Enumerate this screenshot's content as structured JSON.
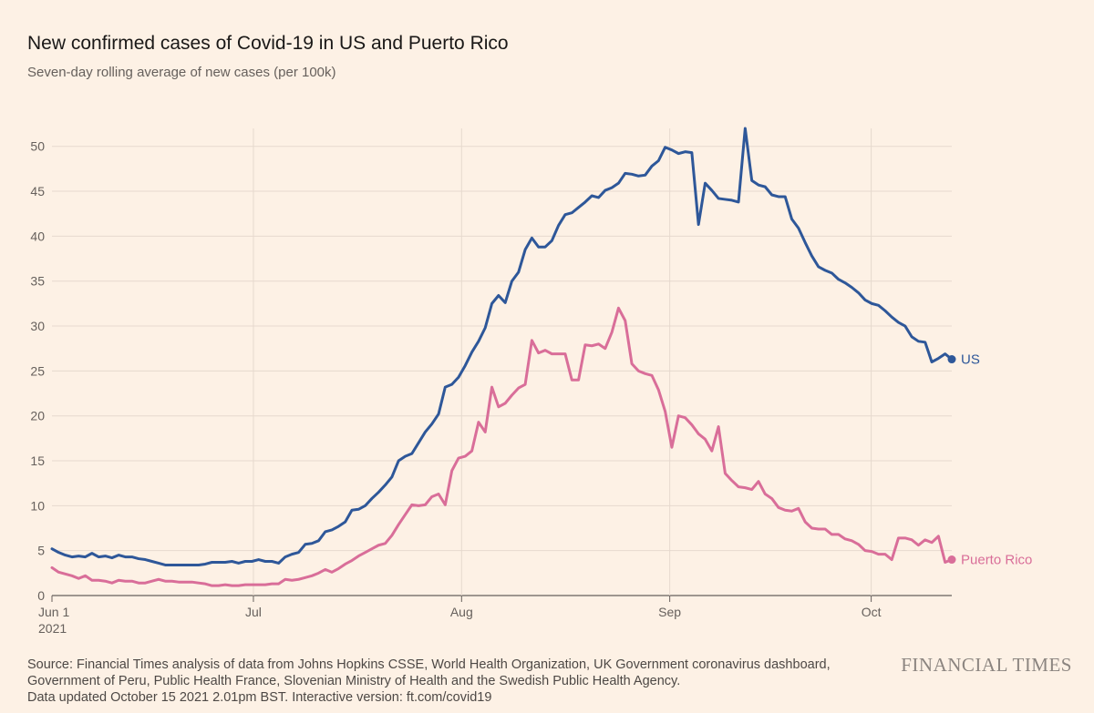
{
  "title": "New confirmed cases of Covid-19 in US and Puerto Rico",
  "subtitle": "Seven-day rolling average of new cases (per 100k)",
  "source_lines": [
    "Source: Financial Times analysis of data from Johns Hopkins CSSE, World Health Organization, UK Government coronavirus dashboard,",
    "Government of Peru, Public Health France, Slovenian Ministry of Health and the Swedish Public Health Agency.",
    "Data updated October 15 2021 2.01pm BST. Interactive version: ft.com/covid19"
  ],
  "brand": "FINANCIAL TIMES",
  "chart_data": {
    "type": "line",
    "x_start": "2021-06-01",
    "x_end": "2021-10-13",
    "ylim": [
      0,
      52
    ],
    "yticks": [
      0,
      5,
      10,
      15,
      20,
      25,
      30,
      35,
      40,
      45,
      50
    ],
    "xticks": [
      {
        "date": "2021-06-01",
        "label": "Jun 1",
        "label2": "2021"
      },
      {
        "date": "2021-07-01",
        "label": "Jul"
      },
      {
        "date": "2021-08-01",
        "label": "Aug"
      },
      {
        "date": "2021-09-01",
        "label": "Sep"
      },
      {
        "date": "2021-10-01",
        "label": "Oct"
      }
    ],
    "grid": true,
    "series": [
      {
        "name": "US",
        "color": "#2e5799",
        "values": [
          5.2,
          4.8,
          4.5,
          4.3,
          4.4,
          4.3,
          4.7,
          4.3,
          4.4,
          4.2,
          4.5,
          4.3,
          4.3,
          4.1,
          4.0,
          3.8,
          3.6,
          3.4,
          3.4,
          3.4,
          3.4,
          3.4,
          3.4,
          3.5,
          3.7,
          3.7,
          3.7,
          3.8,
          3.6,
          3.8,
          3.8,
          4.0,
          3.8,
          3.8,
          3.6,
          4.3,
          4.6,
          4.8,
          5.7,
          5.8,
          6.1,
          7.1,
          7.3,
          7.7,
          8.2,
          9.5,
          9.6,
          10.0,
          10.8,
          11.5,
          12.3,
          13.2,
          15.0,
          15.5,
          15.8,
          17.0,
          18.2,
          19.1,
          20.2,
          23.2,
          23.5,
          24.3,
          25.6,
          27.1,
          28.3,
          29.8,
          32.5,
          33.4,
          32.6,
          35.0,
          36.0,
          38.5,
          39.8,
          38.8,
          38.8,
          39.5,
          41.2,
          42.4,
          42.6,
          43.2,
          43.8,
          44.5,
          44.3,
          45.1,
          45.4,
          45.9,
          47.0,
          46.9,
          46.7,
          46.8,
          47.8,
          48.4,
          49.9,
          49.6,
          49.2,
          49.4,
          49.3,
          41.3,
          45.9,
          45.1,
          44.2,
          44.1,
          44.0,
          43.8,
          52.0,
          46.2,
          45.7,
          45.5,
          44.6,
          44.4,
          44.4,
          41.9,
          40.9,
          39.3,
          37.8,
          36.6,
          36.2,
          35.9,
          35.2,
          34.8,
          34.3,
          33.7,
          32.9,
          32.5,
          32.3,
          31.7,
          31.0,
          30.4,
          30.0,
          28.8,
          28.3,
          28.2,
          26.0,
          26.4,
          26.9,
          26.3
        ]
      },
      {
        "name": "Puerto Rico",
        "color": "#d96e99",
        "values": [
          3.1,
          2.6,
          2.4,
          2.2,
          1.9,
          2.2,
          1.7,
          1.7,
          1.6,
          1.4,
          1.7,
          1.6,
          1.6,
          1.4,
          1.4,
          1.6,
          1.8,
          1.6,
          1.6,
          1.5,
          1.5,
          1.5,
          1.4,
          1.3,
          1.1,
          1.1,
          1.2,
          1.1,
          1.1,
          1.2,
          1.2,
          1.2,
          1.2,
          1.3,
          1.3,
          1.8,
          1.7,
          1.8,
          2.0,
          2.2,
          2.5,
          2.9,
          2.6,
          3.0,
          3.5,
          3.9,
          4.4,
          4.8,
          5.2,
          5.6,
          5.8,
          6.7,
          7.9,
          9.0,
          10.1,
          10.0,
          10.1,
          11.0,
          11.3,
          10.1,
          13.9,
          15.3,
          15.5,
          16.1,
          19.3,
          18.2,
          23.2,
          21.0,
          21.4,
          22.3,
          23.1,
          23.5,
          28.4,
          27.0,
          27.3,
          26.9,
          26.9,
          26.9,
          24.0,
          24.0,
          27.9,
          27.8,
          28.0,
          27.5,
          29.3,
          32.0,
          30.6,
          25.8,
          25.0,
          24.7,
          24.5,
          22.9,
          20.5,
          16.5,
          20.0,
          19.8,
          19.0,
          18.0,
          17.4,
          16.1,
          18.8,
          13.6,
          12.8,
          12.1,
          12.0,
          11.8,
          12.7,
          11.3,
          10.8,
          9.8,
          9.5,
          9.4,
          9.7,
          8.2,
          7.5,
          7.4,
          7.4,
          6.8,
          6.8,
          6.3,
          6.1,
          5.7,
          5.0,
          4.9,
          4.6,
          4.6,
          4.0,
          6.4,
          6.4,
          6.2,
          5.6,
          6.2,
          5.9,
          6.6,
          3.7,
          4.0
        ]
      }
    ]
  }
}
